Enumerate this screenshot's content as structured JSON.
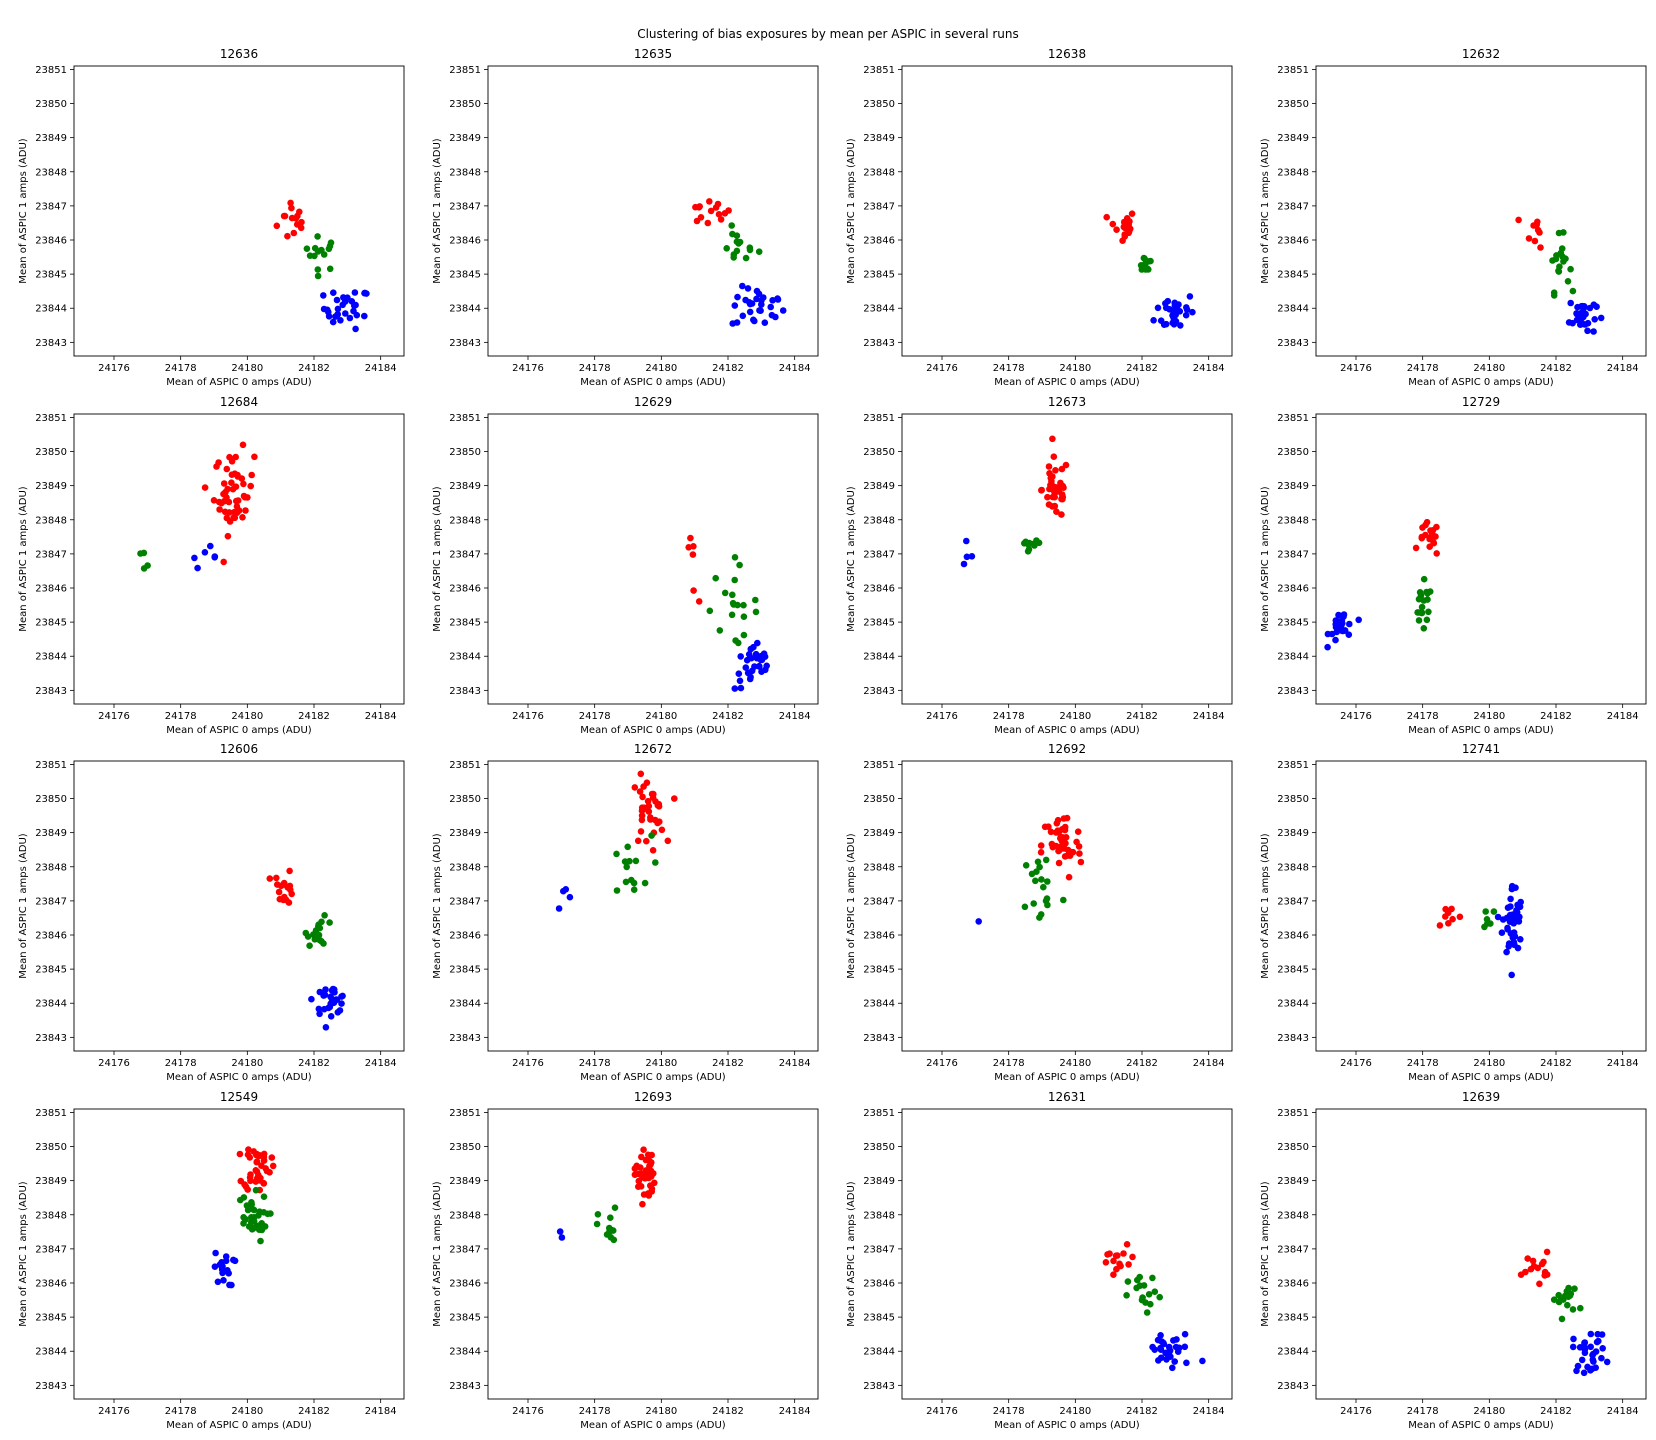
{
  "figure_title": "Clustering of bias exposures by mean per ASPIC in several runs",
  "colors": {
    "red": "#ff0000",
    "green": "#008000",
    "blue": "#0000ff"
  },
  "chart_data": [
    {
      "type": "scatter",
      "title": "12636",
      "xlabel": "Mean of ASPIC 0 amps (ADU)",
      "ylabel": "Mean of ASPIC 1 amps (ADU)",
      "xlim": [
        24174.8,
        24184.7
      ],
      "ylim": [
        23842.6,
        23851.1
      ],
      "xticks": [
        24176,
        24178,
        24180,
        24182,
        24184
      ],
      "yticks": [
        23843,
        23844,
        23845,
        23846,
        23847,
        23848,
        23849,
        23850,
        23851
      ],
      "grid": false,
      "clusters": [
        {
          "color": "red",
          "cx": 24181.4,
          "cy": 23846.6,
          "sx": 0.25,
          "sy": 0.35,
          "n": 14
        },
        {
          "color": "green",
          "cx": 24182.2,
          "cy": 23845.6,
          "sx": 0.25,
          "sy": 0.25,
          "n": 14
        },
        {
          "color": "blue",
          "cx": 24183.0,
          "cy": 23844.0,
          "sx": 0.35,
          "sy": 0.3,
          "n": 30
        }
      ]
    },
    {
      "type": "scatter",
      "title": "12635",
      "xlabel": "Mean of ASPIC 0 amps (ADU)",
      "ylabel": "Mean of ASPIC 1 amps (ADU)",
      "xlim": [
        24174.8,
        24184.7
      ],
      "ylim": [
        23842.6,
        23851.1
      ],
      "xticks": [
        24176,
        24178,
        24180,
        24182,
        24184
      ],
      "yticks": [
        23843,
        23844,
        23845,
        23846,
        23847,
        23848,
        23849,
        23850,
        23851
      ],
      "grid": false,
      "clusters": [
        {
          "color": "red",
          "cx": 24181.4,
          "cy": 23846.8,
          "sx": 0.35,
          "sy": 0.2,
          "n": 14
        },
        {
          "color": "green",
          "cx": 24182.3,
          "cy": 23845.8,
          "sx": 0.3,
          "sy": 0.25,
          "n": 14
        },
        {
          "color": "blue",
          "cx": 24182.9,
          "cy": 23844.0,
          "sx": 0.4,
          "sy": 0.3,
          "n": 30
        }
      ]
    },
    {
      "type": "scatter",
      "title": "12638",
      "xlabel": "Mean of ASPIC 0 amps (ADU)",
      "ylabel": "Mean of ASPIC 1 amps (ADU)",
      "xlim": [
        24174.8,
        24184.7
      ],
      "ylim": [
        23842.6,
        23851.1
      ],
      "xticks": [
        24176,
        24178,
        24180,
        24182,
        24184
      ],
      "yticks": [
        23843,
        23844,
        23845,
        23846,
        23847,
        23848,
        23849,
        23850,
        23851
      ],
      "grid": false,
      "clusters": [
        {
          "color": "red",
          "cx": 24181.4,
          "cy": 23846.4,
          "sx": 0.2,
          "sy": 0.25,
          "n": 18
        },
        {
          "color": "green",
          "cx": 24182.1,
          "cy": 23845.3,
          "sx": 0.12,
          "sy": 0.15,
          "n": 10
        },
        {
          "color": "blue",
          "cx": 24183.0,
          "cy": 23843.9,
          "sx": 0.3,
          "sy": 0.3,
          "n": 30
        }
      ]
    },
    {
      "type": "scatter",
      "title": "12632",
      "xlabel": "Mean of ASPIC 0 amps (ADU)",
      "ylabel": "Mean of ASPIC 1 amps (ADU)",
      "xlim": [
        24174.8,
        24184.7
      ],
      "ylim": [
        23842.6,
        23851.1
      ],
      "xticks": [
        24176,
        24178,
        24180,
        24182,
        24184
      ],
      "yticks": [
        23843,
        23844,
        23845,
        23846,
        23847,
        23848,
        23849,
        23850,
        23851
      ],
      "grid": false,
      "clusters": [
        {
          "color": "red",
          "cx": 24181.4,
          "cy": 23846.3,
          "sx": 0.15,
          "sy": 0.25,
          "n": 10
        },
        {
          "color": "green",
          "cx": 24182.1,
          "cy": 23845.3,
          "sx": 0.15,
          "sy": 0.4,
          "n": 18
        },
        {
          "color": "blue",
          "cx": 24182.8,
          "cy": 23843.8,
          "sx": 0.2,
          "sy": 0.3,
          "n": 30
        }
      ]
    },
    {
      "type": "scatter",
      "title": "12684",
      "xlabel": "Mean of ASPIC 0 amps (ADU)",
      "ylabel": "Mean of ASPIC 1 amps (ADU)",
      "xlim": [
        24174.8,
        24184.7
      ],
      "ylim": [
        23842.6,
        23851.1
      ],
      "xticks": [
        24176,
        24178,
        24180,
        24182,
        24184
      ],
      "yticks": [
        23843,
        23844,
        23845,
        23846,
        23847,
        23848,
        23849,
        23850,
        23851
      ],
      "grid": false,
      "clusters": [
        {
          "color": "red",
          "cx": 24179.6,
          "cy": 23848.8,
          "sx": 0.3,
          "sy": 0.6,
          "n": 50
        },
        {
          "color": "green",
          "cx": 24177.0,
          "cy": 23847.1,
          "sx": 0.25,
          "sy": 0.2,
          "n": 4
        },
        {
          "color": "blue",
          "cx": 24178.7,
          "cy": 23846.9,
          "sx": 0.2,
          "sy": 0.15,
          "n": 6
        }
      ]
    },
    {
      "type": "scatter",
      "title": "12629",
      "xlabel": "Mean of ASPIC 0 amps (ADU)",
      "ylabel": "Mean of ASPIC 1 amps (ADU)",
      "xlim": [
        24174.8,
        24184.7
      ],
      "ylim": [
        23842.6,
        23851.1
      ],
      "xticks": [
        24176,
        24178,
        24180,
        24182,
        24184
      ],
      "yticks": [
        23843,
        23844,
        23845,
        23846,
        23847,
        23848,
        23849,
        23850,
        23851
      ],
      "grid": false,
      "clusters": [
        {
          "color": "red",
          "cx": 24181.0,
          "cy": 23846.5,
          "sx": 0.2,
          "sy": 0.5,
          "n": 6
        },
        {
          "color": "green",
          "cx": 24182.1,
          "cy": 23845.5,
          "sx": 0.4,
          "sy": 0.6,
          "n": 20
        },
        {
          "color": "blue",
          "cx": 24182.8,
          "cy": 23843.7,
          "sx": 0.3,
          "sy": 0.35,
          "n": 30
        }
      ]
    },
    {
      "type": "scatter",
      "title": "12673",
      "xlabel": "Mean of ASPIC 0 amps (ADU)",
      "ylabel": "Mean of ASPIC 1 amps (ADU)",
      "xlim": [
        24174.8,
        24184.7
      ],
      "ylim": [
        23842.6,
        23851.1
      ],
      "xticks": [
        24176,
        24178,
        24180,
        24182,
        24184
      ],
      "yticks": [
        23843,
        23844,
        23845,
        23846,
        23847,
        23848,
        23849,
        23850,
        23851
      ],
      "grid": false,
      "clusters": [
        {
          "color": "red",
          "cx": 24179.4,
          "cy": 23848.9,
          "sx": 0.2,
          "sy": 0.45,
          "n": 40
        },
        {
          "color": "green",
          "cx": 24178.6,
          "cy": 23847.2,
          "sx": 0.2,
          "sy": 0.15,
          "n": 10
        },
        {
          "color": "blue",
          "cx": 24176.8,
          "cy": 23847.0,
          "sx": 0.15,
          "sy": 0.2,
          "n": 4
        }
      ]
    },
    {
      "type": "scatter",
      "title": "12729",
      "xlabel": "Mean of ASPIC 0 amps (ADU)",
      "ylabel": "Mean of ASPIC 1 amps (ADU)",
      "xlim": [
        24174.8,
        24184.7
      ],
      "ylim": [
        23842.6,
        23851.1
      ],
      "xticks": [
        24176,
        24178,
        24180,
        24182,
        24184
      ],
      "yticks": [
        23843,
        23844,
        23845,
        23846,
        23847,
        23848,
        23849,
        23850,
        23851
      ],
      "grid": false,
      "clusters": [
        {
          "color": "red",
          "cx": 24178.2,
          "cy": 23847.4,
          "sx": 0.15,
          "sy": 0.25,
          "n": 18
        },
        {
          "color": "green",
          "cx": 24178.0,
          "cy": 23845.4,
          "sx": 0.15,
          "sy": 0.35,
          "n": 18
        },
        {
          "color": "blue",
          "cx": 24175.6,
          "cy": 23844.9,
          "sx": 0.2,
          "sy": 0.25,
          "n": 25
        }
      ]
    },
    {
      "type": "scatter",
      "title": "12606",
      "xlabel": "Mean of ASPIC 0 amps (ADU)",
      "ylabel": "Mean of ASPIC 1 amps (ADU)",
      "xlim": [
        24174.8,
        24184.7
      ],
      "ylim": [
        23842.6,
        23851.1
      ],
      "xticks": [
        24176,
        24178,
        24180,
        24182,
        24184
      ],
      "yticks": [
        23843,
        23844,
        23845,
        23846,
        23847,
        23848,
        23849,
        23850,
        23851
      ],
      "grid": false,
      "clusters": [
        {
          "color": "red",
          "cx": 24181.1,
          "cy": 23847.4,
          "sx": 0.15,
          "sy": 0.25,
          "n": 18
        },
        {
          "color": "green",
          "cx": 24182.2,
          "cy": 23846.1,
          "sx": 0.2,
          "sy": 0.2,
          "n": 18
        },
        {
          "color": "blue",
          "cx": 24182.5,
          "cy": 23844.1,
          "sx": 0.25,
          "sy": 0.2,
          "n": 30
        }
      ]
    },
    {
      "type": "scatter",
      "title": "12672",
      "xlabel": "Mean of ASPIC 0 amps (ADU)",
      "ylabel": "Mean of ASPIC 1 amps (ADU)",
      "xlim": [
        24174.8,
        24184.7
      ],
      "ylim": [
        23842.6,
        23851.1
      ],
      "xticks": [
        24176,
        24178,
        24180,
        24182,
        24184
      ],
      "yticks": [
        23843,
        23844,
        23845,
        23846,
        23847,
        23848,
        23849,
        23850,
        23851
      ],
      "grid": false,
      "clusters": [
        {
          "color": "red",
          "cx": 24179.6,
          "cy": 23849.6,
          "sx": 0.25,
          "sy": 0.5,
          "n": 35
        },
        {
          "color": "green",
          "cx": 24179.0,
          "cy": 23847.9,
          "sx": 0.35,
          "sy": 0.5,
          "n": 14
        },
        {
          "color": "blue",
          "cx": 24177.0,
          "cy": 23847.2,
          "sx": 0.2,
          "sy": 0.4,
          "n": 4
        }
      ]
    },
    {
      "type": "scatter",
      "title": "12692",
      "xlabel": "Mean of ASPIC 0 amps (ADU)",
      "ylabel": "Mean of ASPIC 1 amps (ADU)",
      "xlim": [
        24174.8,
        24184.7
      ],
      "ylim": [
        23842.6,
        23851.1
      ],
      "xticks": [
        24176,
        24178,
        24180,
        24182,
        24184
      ],
      "yticks": [
        23843,
        23844,
        23845,
        23846,
        23847,
        23848,
        23849,
        23850,
        23851
      ],
      "grid": false,
      "clusters": [
        {
          "color": "red",
          "cx": 24179.6,
          "cy": 23848.6,
          "sx": 0.3,
          "sy": 0.5,
          "n": 45
        },
        {
          "color": "green",
          "cx": 24179.0,
          "cy": 23847.4,
          "sx": 0.3,
          "sy": 0.6,
          "n": 18
        },
        {
          "color": "blue",
          "cx": 24177.1,
          "cy": 23846.4,
          "sx": 0.02,
          "sy": 0.02,
          "n": 1
        }
      ]
    },
    {
      "type": "scatter",
      "title": "12741",
      "xlabel": "Mean of ASPIC 0 amps (ADU)",
      "ylabel": "Mean of ASPIC 1 amps (ADU)",
      "xlim": [
        24174.8,
        24184.7
      ],
      "ylim": [
        23842.6,
        23851.1
      ],
      "xticks": [
        24176,
        24178,
        24180,
        24182,
        24184
      ],
      "yticks": [
        23843,
        23844,
        23845,
        23846,
        23847,
        23848,
        23849,
        23850,
        23851
      ],
      "grid": false,
      "clusters": [
        {
          "color": "red",
          "cx": 24178.8,
          "cy": 23846.6,
          "sx": 0.2,
          "sy": 0.2,
          "n": 8
        },
        {
          "color": "green",
          "cx": 24180.0,
          "cy": 23846.5,
          "sx": 0.12,
          "sy": 0.2,
          "n": 6
        },
        {
          "color": "blue",
          "cx": 24180.7,
          "cy": 23846.4,
          "sx": 0.15,
          "sy": 0.55,
          "n": 45
        }
      ]
    },
    {
      "type": "scatter",
      "title": "12549",
      "xlabel": "Mean of ASPIC 0 amps (ADU)",
      "ylabel": "Mean of ASPIC 1 amps (ADU)",
      "xlim": [
        24174.8,
        24184.7
      ],
      "ylim": [
        23842.6,
        23851.1
      ],
      "xticks": [
        24176,
        24178,
        24180,
        24182,
        24184
      ],
      "yticks": [
        23843,
        23844,
        23845,
        23846,
        23847,
        23848,
        23849,
        23850,
        23851
      ],
      "grid": false,
      "clusters": [
        {
          "color": "red",
          "cx": 24180.3,
          "cy": 23849.4,
          "sx": 0.2,
          "sy": 0.35,
          "n": 40
        },
        {
          "color": "green",
          "cx": 24180.1,
          "cy": 23847.9,
          "sx": 0.25,
          "sy": 0.35,
          "n": 35
        },
        {
          "color": "blue",
          "cx": 24179.3,
          "cy": 23846.4,
          "sx": 0.15,
          "sy": 0.25,
          "n": 18
        }
      ]
    },
    {
      "type": "scatter",
      "title": "12693",
      "xlabel": "Mean of ASPIC 0 amps (ADU)",
      "ylabel": "Mean of ASPIC 1 amps (ADU)",
      "xlim": [
        24174.8,
        24184.7
      ],
      "ylim": [
        23842.6,
        23851.1
      ],
      "xticks": [
        24176,
        24178,
        24180,
        24182,
        24184
      ],
      "yticks": [
        23843,
        23844,
        23845,
        23846,
        23847,
        23848,
        23849,
        23850,
        23851
      ],
      "grid": false,
      "clusters": [
        {
          "color": "red",
          "cx": 24179.5,
          "cy": 23849.2,
          "sx": 0.15,
          "sy": 0.4,
          "n": 40
        },
        {
          "color": "green",
          "cx": 24178.4,
          "cy": 23847.6,
          "sx": 0.15,
          "sy": 0.3,
          "n": 12
        },
        {
          "color": "blue",
          "cx": 24177.0,
          "cy": 23847.4,
          "sx": 0.05,
          "sy": 0.4,
          "n": 2
        }
      ]
    },
    {
      "type": "scatter",
      "title": "12631",
      "xlabel": "Mean of ASPIC 0 amps (ADU)",
      "ylabel": "Mean of ASPIC 1 amps (ADU)",
      "xlim": [
        24174.8,
        24184.7
      ],
      "ylim": [
        23842.6,
        23851.1
      ],
      "xticks": [
        24176,
        24178,
        24180,
        24182,
        24184
      ],
      "yticks": [
        23843,
        23844,
        23845,
        23846,
        23847,
        23848,
        23849,
        23850,
        23851
      ],
      "grid": false,
      "clusters": [
        {
          "color": "red",
          "cx": 24181.3,
          "cy": 23846.6,
          "sx": 0.3,
          "sy": 0.25,
          "n": 14
        },
        {
          "color": "green",
          "cx": 24182.1,
          "cy": 23845.6,
          "sx": 0.25,
          "sy": 0.3,
          "n": 16
        },
        {
          "color": "blue",
          "cx": 24182.9,
          "cy": 23844.0,
          "sx": 0.4,
          "sy": 0.3,
          "n": 30
        }
      ]
    },
    {
      "type": "scatter",
      "title": "12639",
      "xlabel": "Mean of ASPIC 0 amps (ADU)",
      "ylabel": "Mean of ASPIC 1 amps (ADU)",
      "xlim": [
        24174.8,
        24184.7
      ],
      "ylim": [
        23842.6,
        23851.1
      ],
      "xticks": [
        24176,
        24178,
        24180,
        24182,
        24184
      ],
      "yticks": [
        23843,
        23844,
        23845,
        23846,
        23847,
        23848,
        23849,
        23850,
        23851
      ],
      "grid": false,
      "clusters": [
        {
          "color": "red",
          "cx": 24181.4,
          "cy": 23846.5,
          "sx": 0.2,
          "sy": 0.2,
          "n": 14
        },
        {
          "color": "green",
          "cx": 24182.3,
          "cy": 23845.5,
          "sx": 0.2,
          "sy": 0.25,
          "n": 16
        },
        {
          "color": "blue",
          "cx": 24183.0,
          "cy": 23844.0,
          "sx": 0.25,
          "sy": 0.3,
          "n": 30
        }
      ]
    }
  ]
}
